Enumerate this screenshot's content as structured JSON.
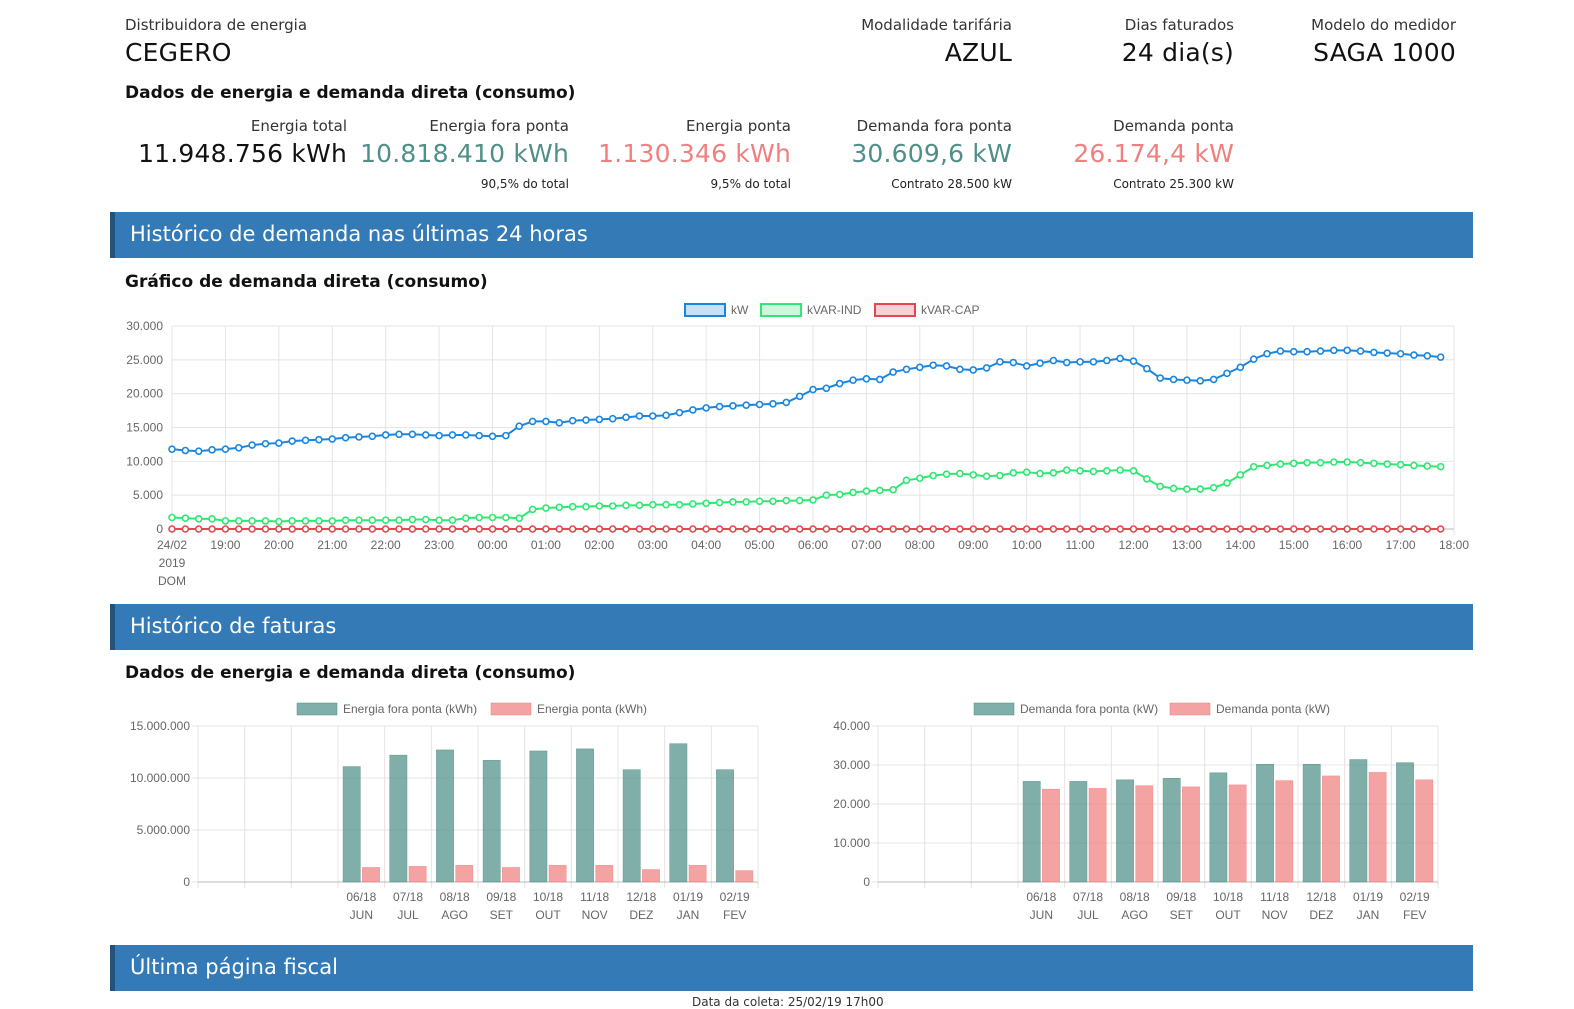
{
  "header": {
    "distribuidora_label": "Distribuidora de energia",
    "distribuidora_value": "CEGERO",
    "modalidade_label": "Modalidade tarifária",
    "modalidade_value": "AZUL",
    "dias_label": "Dias faturados",
    "dias_value": "24 dia(s)",
    "modelo_label": "Modelo do medidor",
    "modelo_value": "SAGA 1000"
  },
  "summary": {
    "title": "Dados de energia e demanda direta (consumo)",
    "energia_total_label": "Energia total",
    "energia_total_value": "11.948.756 kWh",
    "energia_fora_label": "Energia fora ponta",
    "energia_fora_value": "10.818.410 kWh",
    "energia_fora_note": "90,5% do total",
    "energia_ponta_label": "Energia ponta",
    "energia_ponta_value": "1.130.346 kWh",
    "energia_ponta_note": "9,5% do total",
    "demanda_fora_label": "Demanda fora ponta",
    "demanda_fora_value": "30.609,6 kW",
    "demanda_fora_note": "Contrato 28.500 kW",
    "demanda_ponta_label": "Demanda ponta",
    "demanda_ponta_value": "26.174,4 kW",
    "demanda_ponta_note": "Contrato 25.300 kW"
  },
  "colors": {
    "header_bar": "#337ab7",
    "fora_ponta": "#4f8f87",
    "ponta": "#f08080",
    "kw": "#1a86e0",
    "kvar_ind": "#2ee873",
    "kvar_cap": "#e8454f"
  },
  "sections": {
    "historico_demanda": "Histórico de demanda nas últimas 24 horas",
    "grafico_title": "Gráfico de demanda direta (consumo)",
    "historico_faturas": "Histórico de faturas",
    "faturas_title": "Dados de energia e demanda direta (consumo)",
    "ultima_pagina": "Última página fiscal"
  },
  "footer_partial": "Data da coleta: 25/02/19 17h00",
  "chart_data": [
    {
      "type": "line",
      "legend": [
        "kW",
        "kVAR-IND",
        "kVAR-CAP"
      ],
      "legend_position": "top-center",
      "ylim": [
        0,
        30000
      ],
      "y_ticks": [
        "30.000",
        "25.000",
        "20.000",
        "15.000",
        "10.000",
        "5.000",
        "0"
      ],
      "x_ticks": [
        "24/02",
        "19:00",
        "20:00",
        "21:00",
        "22:00",
        "23:00",
        "00:00",
        "01:00",
        "02:00",
        "03:00",
        "04:00",
        "05:00",
        "06:00",
        "07:00",
        "08:00",
        "09:00",
        "10:00",
        "11:00",
        "12:00",
        "13:00",
        "14:00",
        "15:00",
        "16:00",
        "17:00",
        "18:00"
      ],
      "x_first_tick_sub": [
        "2019",
        "DOM"
      ],
      "x_range_hours": [
        18,
        42
      ],
      "grid": true,
      "series": [
        {
          "name": "kW",
          "x_start_hour": 18,
          "x_step_hours": 0.25,
          "values": [
            11800,
            11600,
            11500,
            11700,
            11800,
            12000,
            12400,
            12600,
            12700,
            13000,
            13100,
            13200,
            13300,
            13500,
            13600,
            13700,
            13900,
            14000,
            14000,
            13900,
            13800,
            13900,
            13900,
            13800,
            13700,
            13800,
            15200,
            15900,
            15900,
            15700,
            16000,
            16100,
            16200,
            16300,
            16500,
            16700,
            16700,
            16800,
            17200,
            17600,
            17900,
            18100,
            18200,
            18300,
            18400,
            18500,
            18700,
            19600,
            20600,
            20800,
            21500,
            22000,
            22200,
            22100,
            23200,
            23600,
            23900,
            24200,
            24100,
            23600,
            23500,
            23800,
            24700,
            24600,
            24100,
            24500,
            24900,
            24600,
            24700,
            24700,
            24900,
            25200,
            24800,
            23700,
            22300,
            22100,
            22000,
            21900,
            22100,
            23000,
            23900,
            25100,
            25900,
            26300,
            26200,
            26200,
            26300,
            26400,
            26400,
            26300,
            26100,
            26000,
            25900,
            25700,
            25600,
            25400
          ]
        },
        {
          "name": "kVAR-IND",
          "x_start_hour": 18,
          "x_step_hours": 0.25,
          "values": [
            1700,
            1600,
            1500,
            1500,
            1200,
            1200,
            1200,
            1200,
            1100,
            1200,
            1200,
            1200,
            1200,
            1300,
            1300,
            1300,
            1300,
            1300,
            1400,
            1400,
            1300,
            1300,
            1600,
            1700,
            1700,
            1700,
            1600,
            2900,
            3100,
            3200,
            3300,
            3300,
            3400,
            3400,
            3500,
            3500,
            3600,
            3600,
            3600,
            3700,
            3800,
            3900,
            4000,
            4000,
            4100,
            4100,
            4200,
            4200,
            4300,
            5000,
            5100,
            5400,
            5600,
            5700,
            5800,
            7200,
            7500,
            7900,
            8100,
            8200,
            8000,
            7800,
            7900,
            8300,
            8400,
            8200,
            8300,
            8700,
            8600,
            8500,
            8600,
            8700,
            8600,
            7400,
            6300,
            6000,
            5900,
            5900,
            6100,
            6800,
            8000,
            9200,
            9400,
            9600,
            9700,
            9800,
            9800,
            9900,
            9900,
            9800,
            9700,
            9600,
            9500,
            9400,
            9300,
            9200
          ]
        },
        {
          "name": "kVAR-CAP",
          "x_start_hour": 18,
          "x_step_hours": 0.25,
          "values": [
            0,
            0,
            0,
            0,
            0,
            0,
            0,
            0,
            0,
            0,
            0,
            0,
            0,
            0,
            0,
            0,
            0,
            0,
            0,
            0,
            0,
            0,
            0,
            0,
            0,
            0,
            0,
            0,
            0,
            0,
            0,
            0,
            0,
            0,
            0,
            0,
            0,
            0,
            0,
            0,
            0,
            0,
            0,
            0,
            0,
            0,
            0,
            0,
            0,
            0,
            0,
            0,
            0,
            0,
            0,
            0,
            0,
            0,
            0,
            0,
            0,
            0,
            0,
            0,
            0,
            0,
            0,
            0,
            0,
            0,
            0,
            0,
            0,
            0,
            0,
            0,
            0,
            0,
            0,
            0,
            0,
            0,
            0,
            0,
            0,
            0,
            0,
            0,
            0,
            0,
            0,
            0,
            0,
            0,
            0,
            0
          ]
        }
      ]
    },
    {
      "type": "bar",
      "legend_position": "top-center",
      "categories": [
        "",
        "",
        "",
        "06/18",
        "07/18",
        "08/18",
        "09/18",
        "10/18",
        "11/18",
        "12/18",
        "01/19",
        "02/19"
      ],
      "category_months": [
        "",
        "",
        "",
        "JUN",
        "JUL",
        "AGO",
        "SET",
        "OUT",
        "NOV",
        "DEZ",
        "JAN",
        "FEV"
      ],
      "ylim": [
        0,
        15000000
      ],
      "y_ticks": [
        "15.000.000",
        "10.000.000",
        "5.000.000",
        "0"
      ],
      "series": [
        {
          "name": "Energia fora ponta (kWh)",
          "values": [
            null,
            null,
            null,
            11100000,
            12200000,
            12700000,
            11700000,
            12600000,
            12800000,
            10800000,
            13300000,
            10800000
          ]
        },
        {
          "name": "Energia ponta (kWh)",
          "values": [
            null,
            null,
            null,
            1400000,
            1500000,
            1600000,
            1400000,
            1600000,
            1600000,
            1200000,
            1600000,
            1100000
          ]
        }
      ]
    },
    {
      "type": "bar",
      "legend_position": "top-center",
      "categories": [
        "",
        "",
        "",
        "06/18",
        "07/18",
        "08/18",
        "09/18",
        "10/18",
        "11/18",
        "12/18",
        "01/19",
        "02/19"
      ],
      "category_months": [
        "",
        "",
        "",
        "JUN",
        "JUL",
        "AGO",
        "SET",
        "OUT",
        "NOV",
        "DEZ",
        "JAN",
        "FEV"
      ],
      "ylim": [
        0,
        40000
      ],
      "y_ticks": [
        "40.000",
        "30.000",
        "20.000",
        "10.000",
        "0"
      ],
      "series": [
        {
          "name": "Demanda fora ponta (kW)",
          "values": [
            null,
            null,
            null,
            25800,
            25800,
            26200,
            26600,
            28000,
            30200,
            30200,
            31400,
            30600
          ]
        },
        {
          "name": "Demanda ponta (kW)",
          "values": [
            null,
            null,
            null,
            23800,
            24000,
            24700,
            24400,
            24900,
            26000,
            27200,
            28100,
            26200
          ]
        }
      ]
    }
  ]
}
